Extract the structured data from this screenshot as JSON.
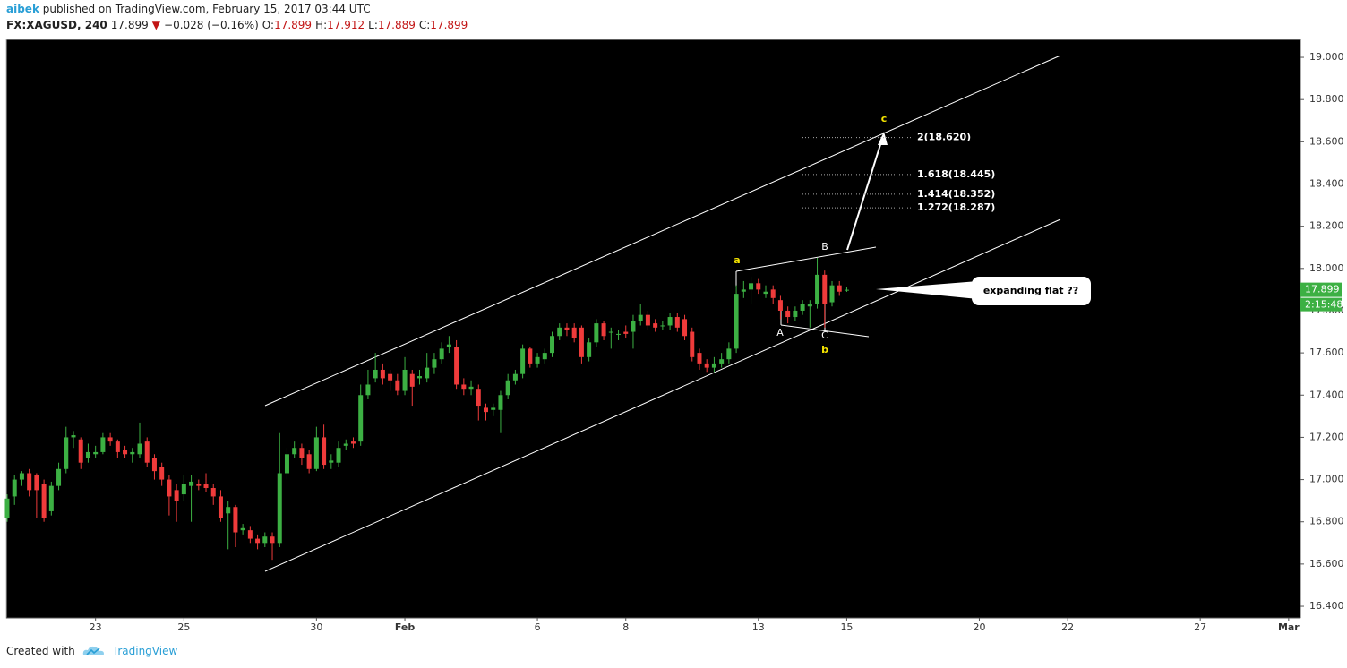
{
  "header": {
    "author": "aibek",
    "published": "published on TradingView.com, February 15, 2017 03:44 UTC",
    "symbol": "FX:XAGUSD, 240",
    "direction": "▼",
    "change": "−0.028 (−0.16%)",
    "ohlc_labels": [
      "O:",
      "H:",
      "L:",
      "C:"
    ]
  },
  "footer": {
    "created_with": "Created with",
    "brand": "TradingView"
  },
  "chart_data": {
    "type": "candlestick",
    "up_color": "#3cb043",
    "down_color": "#ef3b3b",
    "xlim": [
      -0.12,
      175.6
    ],
    "ylim": [
      16.345,
      19.085
    ],
    "xticks": [
      {
        "value": 12,
        "label": "23"
      },
      {
        "value": 24,
        "label": "25"
      },
      {
        "value": 42,
        "label": "30"
      },
      {
        "value": 54,
        "label": "Feb"
      },
      {
        "value": 72,
        "label": "6"
      },
      {
        "value": 84,
        "label": "8"
      },
      {
        "value": 102,
        "label": "13"
      },
      {
        "value": 114,
        "label": "15"
      },
      {
        "value": 132,
        "label": "20"
      },
      {
        "value": 144,
        "label": "22"
      },
      {
        "value": 162,
        "label": "27"
      },
      {
        "value": 174,
        "label": "Mar"
      }
    ],
    "yticks": [
      {
        "value": 16.4,
        "label": "16.400"
      },
      {
        "value": 16.6,
        "label": "16.600"
      },
      {
        "value": 16.8,
        "label": "16.800"
      },
      {
        "value": 17.0,
        "label": "17.000"
      },
      {
        "value": 17.2,
        "label": "17.200"
      },
      {
        "value": 17.4,
        "label": "17.400"
      },
      {
        "value": 17.6,
        "label": "17.600"
      },
      {
        "value": 17.8,
        "label": "17.800"
      },
      {
        "value": 18.0,
        "label": "18.000"
      },
      {
        "value": 18.2,
        "label": "18.200"
      },
      {
        "value": 18.4,
        "label": "18.400"
      },
      {
        "value": 18.6,
        "label": "18.600"
      },
      {
        "value": 18.8,
        "label": "18.800"
      },
      {
        "value": 19.0,
        "label": "19.000"
      }
    ],
    "x": [
      0,
      1,
      2,
      3,
      4,
      5,
      6,
      7,
      8,
      9,
      10,
      11,
      12,
      13,
      14,
      15,
      16,
      17,
      18,
      19,
      20,
      21,
      22,
      23,
      24,
      25,
      26,
      27,
      28,
      29,
      30,
      31,
      32,
      33,
      34,
      35,
      36,
      37,
      38,
      39,
      40,
      41,
      42,
      43,
      44,
      45,
      46,
      47,
      48,
      49,
      50,
      51,
      52,
      53,
      54,
      55,
      56,
      57,
      58,
      59,
      60,
      61,
      62,
      63,
      64,
      65,
      66,
      67,
      68,
      69,
      70,
      71,
      72,
      73,
      74,
      75,
      76,
      77,
      78,
      79,
      80,
      81,
      82,
      83,
      84,
      85,
      86,
      87,
      88,
      89,
      90,
      91,
      92,
      93,
      94,
      95,
      96,
      97,
      98,
      99,
      100,
      101,
      102,
      103,
      104,
      105,
      106,
      107,
      108,
      109,
      110,
      111,
      112,
      113,
      114
    ],
    "open": [
      16.82,
      16.92,
      17.0,
      17.03,
      17.02,
      16.98,
      16.85,
      16.97,
      17.05,
      17.2,
      17.19,
      17.1,
      17.12,
      17.13,
      17.2,
      17.18,
      17.14,
      17.12,
      17.12,
      17.18,
      17.1,
      17.06,
      17.0,
      16.95,
      16.93,
      16.97,
      16.98,
      16.98,
      16.96,
      16.92,
      16.84,
      16.87,
      16.76,
      16.76,
      16.72,
      16.7,
      16.73,
      16.7,
      17.03,
      17.12,
      17.15,
      17.12,
      17.05,
      17.2,
      17.08,
      17.08,
      17.16,
      17.18,
      17.18,
      17.4,
      17.48,
      17.52,
      17.5,
      17.47,
      17.42,
      17.5,
      17.48,
      17.48,
      17.53,
      17.57,
      17.63,
      17.63,
      17.45,
      17.43,
      17.43,
      17.34,
      17.33,
      17.33,
      17.4,
      17.47,
      17.5,
      17.62,
      17.55,
      17.57,
      17.6,
      17.68,
      17.72,
      17.72,
      17.72,
      17.58,
      17.65,
      17.74,
      17.7,
      17.69,
      17.7,
      17.7,
      17.75,
      17.78,
      17.74,
      17.73,
      17.73,
      17.77,
      17.76,
      17.7,
      17.6,
      17.55,
      17.53,
      17.55,
      17.57,
      17.62,
      17.89,
      17.9,
      17.93,
      17.88,
      17.9,
      17.85,
      17.8,
      17.77,
      17.8,
      17.82,
      17.83,
      17.97,
      17.84,
      17.92,
      17.899
    ],
    "high": [
      16.93,
      17.02,
      17.04,
      17.05,
      17.03,
      17.0,
      16.99,
      17.08,
      17.25,
      17.23,
      17.2,
      17.17,
      17.16,
      17.22,
      17.22,
      17.19,
      17.16,
      17.15,
      17.27,
      17.2,
      17.12,
      17.08,
      17.02,
      16.98,
      17.02,
      17.02,
      17.0,
      17.03,
      16.98,
      16.95,
      16.9,
      16.88,
      16.79,
      16.78,
      16.74,
      16.75,
      16.75,
      17.22,
      17.15,
      17.18,
      17.17,
      17.14,
      17.25,
      17.26,
      17.12,
      17.18,
      17.19,
      17.2,
      17.45,
      17.52,
      17.6,
      17.55,
      17.52,
      17.5,
      17.58,
      17.52,
      17.52,
      17.6,
      17.6,
      17.65,
      17.68,
      17.66,
      17.48,
      17.47,
      17.45,
      17.36,
      17.36,
      17.42,
      17.5,
      17.52,
      17.64,
      17.63,
      17.6,
      17.62,
      17.7,
      17.74,
      17.74,
      17.74,
      17.73,
      17.67,
      17.76,
      17.75,
      17.72,
      17.71,
      17.73,
      17.78,
      17.83,
      17.8,
      17.76,
      17.75,
      17.79,
      17.79,
      17.78,
      17.72,
      17.62,
      17.57,
      17.58,
      17.6,
      17.65,
      17.92,
      17.94,
      17.96,
      17.95,
      17.92,
      17.92,
      17.87,
      17.82,
      17.82,
      17.85,
      17.85,
      18.05,
      17.99,
      17.94,
      17.94,
      17.912
    ],
    "low": [
      16.8,
      16.88,
      16.97,
      16.92,
      16.82,
      16.8,
      16.83,
      16.95,
      17.03,
      17.15,
      17.05,
      17.08,
      17.1,
      17.12,
      17.16,
      17.1,
      17.1,
      17.08,
      17.1,
      17.06,
      17.0,
      16.97,
      16.83,
      16.8,
      16.9,
      16.8,
      16.95,
      16.94,
      16.88,
      16.8,
      16.67,
      16.68,
      16.74,
      16.7,
      16.67,
      16.68,
      16.62,
      16.68,
      17.0,
      17.1,
      17.07,
      17.03,
      17.04,
      17.05,
      17.05,
      17.06,
      17.14,
      17.15,
      17.16,
      17.38,
      17.46,
      17.45,
      17.42,
      17.4,
      17.4,
      17.35,
      17.45,
      17.46,
      17.5,
      17.55,
      17.6,
      17.43,
      17.4,
      17.4,
      17.28,
      17.28,
      17.3,
      17.22,
      17.38,
      17.45,
      17.48,
      17.53,
      17.53,
      17.55,
      17.58,
      17.66,
      17.68,
      17.65,
      17.55,
      17.56,
      17.63,
      17.66,
      17.62,
      17.66,
      17.67,
      17.62,
      17.73,
      17.71,
      17.7,
      17.71,
      17.71,
      17.7,
      17.66,
      17.56,
      17.52,
      17.51,
      17.51,
      17.53,
      17.55,
      17.6,
      17.86,
      17.83,
      17.88,
      17.86,
      17.83,
      17.76,
      17.74,
      17.75,
      17.78,
      17.72,
      17.81,
      17.72,
      17.82,
      17.87,
      17.889
    ],
    "close": [
      16.91,
      17.0,
      17.03,
      16.95,
      16.95,
      16.82,
      16.97,
      17.05,
      17.2,
      17.21,
      17.08,
      17.13,
      17.13,
      17.2,
      17.18,
      17.13,
      17.12,
      17.13,
      17.17,
      17.08,
      17.04,
      17.0,
      16.92,
      16.9,
      16.98,
      16.99,
      16.97,
      16.96,
      16.92,
      16.82,
      16.87,
      16.75,
      16.77,
      16.72,
      16.7,
      16.73,
      16.7,
      17.03,
      17.12,
      17.15,
      17.1,
      17.05,
      17.2,
      17.07,
      17.09,
      17.15,
      17.17,
      17.17,
      17.4,
      17.45,
      17.52,
      17.48,
      17.47,
      17.42,
      17.52,
      17.44,
      17.49,
      17.53,
      17.57,
      17.62,
      17.64,
      17.45,
      17.43,
      17.44,
      17.35,
      17.32,
      17.34,
      17.4,
      17.47,
      17.5,
      17.62,
      17.55,
      17.58,
      17.6,
      17.68,
      17.72,
      17.71,
      17.67,
      17.58,
      17.65,
      17.74,
      17.68,
      17.7,
      17.69,
      17.69,
      17.75,
      17.78,
      17.73,
      17.72,
      17.73,
      17.77,
      17.72,
      17.68,
      17.58,
      17.55,
      17.53,
      17.55,
      17.57,
      17.62,
      17.88,
      17.9,
      17.93,
      17.9,
      17.89,
      17.86,
      17.8,
      17.77,
      17.8,
      17.83,
      17.83,
      17.97,
      17.83,
      17.92,
      17.89,
      17.899
    ],
    "countdown": "2:15:48",
    "fib_levels": [
      {
        "value": 18.62,
        "label": "2(18.620)"
      },
      {
        "value": 18.445,
        "label": "1.618(18.445)"
      },
      {
        "value": 18.352,
        "label": "1.414(18.352)"
      },
      {
        "value": 18.287,
        "label": "1.272(18.287)"
      }
    ],
    "wave_labels": [
      "a",
      "b",
      "c"
    ],
    "sub_wave_labels": [
      "A",
      "B",
      "C"
    ],
    "callout": "expanding flat ??"
  }
}
